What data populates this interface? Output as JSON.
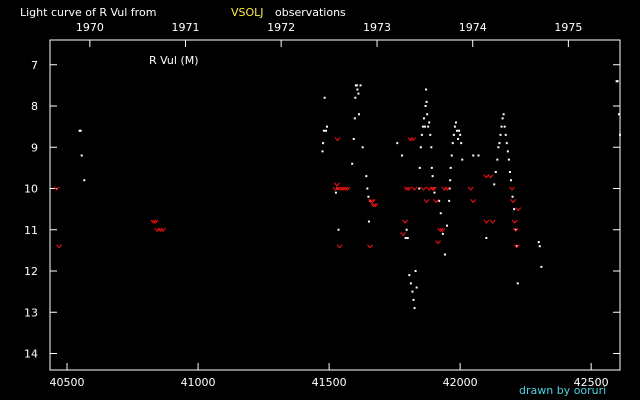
{
  "chart_data": {
    "type": "scatter",
    "title_parts": [
      "Light curve of R Vul from",
      "VSOLJ",
      "observations"
    ],
    "star_label": "R Vul (M)",
    "credit": "drawn by ooruri",
    "x_axis_bottom": {
      "label": "",
      "range": [
        40435,
        42610
      ],
      "ticks": [
        40500,
        41000,
        41500,
        42000,
        42500
      ],
      "tick_labels": [
        "40500",
        "41000",
        "41500",
        "42000",
        "42500"
      ]
    },
    "x_axis_top": {
      "label": "",
      "ticks_jd": [
        40587,
        40952,
        41317,
        41683,
        42048,
        42413
      ],
      "tick_labels": [
        "1970",
        "1971",
        "1972",
        "1973",
        "1974",
        "1975"
      ]
    },
    "y_axis": {
      "label": "",
      "range": [
        6.4,
        14.4
      ],
      "inverted": true,
      "ticks": [
        7,
        8,
        9,
        10,
        11,
        12,
        13,
        14
      ],
      "tick_labels": [
        "7",
        "8",
        "9",
        "10",
        "11",
        "12",
        "13",
        "14"
      ]
    },
    "colors": {
      "background": "#000000",
      "observation": "#ffffff",
      "fainter_than": "#dd1111",
      "highlight": "#ffee44",
      "credit": "#4fd0e0"
    },
    "series": [
      {
        "marker": "dot",
        "points": [
          [
            40548,
            8.6
          ],
          [
            40552,
            8.6
          ],
          [
            40556,
            9.2
          ],
          [
            40566,
            9.8
          ],
          [
            41475,
            9.1
          ],
          [
            41477,
            8.9
          ],
          [
            41480,
            8.6
          ],
          [
            41483,
            7.8
          ],
          [
            41488,
            8.6
          ],
          [
            41492,
            8.5
          ],
          [
            41526,
            10.1
          ],
          [
            41530,
            10.0
          ],
          [
            41536,
            11.0
          ],
          [
            41588,
            9.4
          ],
          [
            41594,
            8.8
          ],
          [
            41598,
            8.3
          ],
          [
            41600,
            7.8
          ],
          [
            41602,
            7.5
          ],
          [
            41606,
            7.5
          ],
          [
            41608,
            7.6
          ],
          [
            41612,
            7.7
          ],
          [
            41614,
            8.2
          ],
          [
            41620,
            7.5
          ],
          [
            41628,
            9.0
          ],
          [
            41642,
            9.7
          ],
          [
            41646,
            10.0
          ],
          [
            41650,
            10.2
          ],
          [
            41652,
            10.8
          ],
          [
            41656,
            10.3
          ],
          [
            41760,
            8.9
          ],
          [
            41778,
            9.2
          ],
          [
            41792,
            11.2
          ],
          [
            41796,
            11.0
          ],
          [
            41800,
            11.2
          ],
          [
            41806,
            12.1
          ],
          [
            41812,
            12.3
          ],
          [
            41818,
            12.5
          ],
          [
            41822,
            12.7
          ],
          [
            41826,
            12.9
          ],
          [
            41830,
            12.0
          ],
          [
            41834,
            12.4
          ],
          [
            41844,
            10.0
          ],
          [
            41846,
            9.5
          ],
          [
            41850,
            9.0
          ],
          [
            41854,
            8.7
          ],
          [
            41858,
            8.5
          ],
          [
            41862,
            8.3
          ],
          [
            41866,
            8.5
          ],
          [
            41868,
            8.0
          ],
          [
            41870,
            7.6
          ],
          [
            41872,
            7.9
          ],
          [
            41874,
            8.2
          ],
          [
            41878,
            8.5
          ],
          [
            41882,
            8.4
          ],
          [
            41886,
            8.7
          ],
          [
            41890,
            9.0
          ],
          [
            41892,
            9.5
          ],
          [
            41895,
            9.7
          ],
          [
            41898,
            10.0
          ],
          [
            41902,
            10.1
          ],
          [
            41920,
            10.3
          ],
          [
            41926,
            10.6
          ],
          [
            41934,
            11.1
          ],
          [
            41942,
            11.6
          ],
          [
            41950,
            10.9
          ],
          [
            41958,
            10.3
          ],
          [
            41960,
            10.0
          ],
          [
            41962,
            9.8
          ],
          [
            41964,
            9.5
          ],
          [
            41968,
            9.2
          ],
          [
            41972,
            8.9
          ],
          [
            41976,
            8.7
          ],
          [
            41980,
            8.5
          ],
          [
            41984,
            8.4
          ],
          [
            41988,
            8.6
          ],
          [
            41992,
            8.8
          ],
          [
            41996,
            8.6
          ],
          [
            42000,
            8.7
          ],
          [
            42004,
            8.9
          ],
          [
            42008,
            9.3
          ],
          [
            42050,
            9.2
          ],
          [
            42070,
            9.2
          ],
          [
            42100,
            11.2
          ],
          [
            42130,
            9.9
          ],
          [
            42136,
            9.6
          ],
          [
            42142,
            9.3
          ],
          [
            42146,
            9.0
          ],
          [
            42150,
            8.9
          ],
          [
            42154,
            8.7
          ],
          [
            42158,
            8.5
          ],
          [
            42162,
            8.3
          ],
          [
            42166,
            8.2
          ],
          [
            42170,
            8.5
          ],
          [
            42174,
            8.7
          ],
          [
            42178,
            8.9
          ],
          [
            42182,
            9.1
          ],
          [
            42186,
            9.3
          ],
          [
            42190,
            9.6
          ],
          [
            42194,
            9.8
          ],
          [
            42200,
            10.2
          ],
          [
            42206,
            10.5
          ],
          [
            42212,
            11.0
          ],
          [
            42216,
            11.4
          ],
          [
            42220,
            12.3
          ],
          [
            42300,
            11.3
          ],
          [
            42304,
            11.4
          ],
          [
            42310,
            11.9
          ],
          [
            42597,
            7.4
          ],
          [
            42601,
            7.4
          ],
          [
            42606,
            8.2
          ],
          [
            42610,
            8.7
          ]
        ]
      },
      {
        "marker": "fainter-than",
        "points": [
          [
            40460,
            10.0
          ],
          [
            40470,
            11.4
          ],
          [
            40830,
            10.8
          ],
          [
            40838,
            10.8
          ],
          [
            40844,
            11.0
          ],
          [
            40856,
            11.0
          ],
          [
            40866,
            11.0
          ],
          [
            41524,
            10.0
          ],
          [
            41530,
            9.9
          ],
          [
            41538,
            10.0
          ],
          [
            41546,
            10.0
          ],
          [
            41554,
            10.0
          ],
          [
            41562,
            10.0
          ],
          [
            41570,
            10.0
          ],
          [
            41532,
            8.8
          ],
          [
            41540,
            11.4
          ],
          [
            41660,
            10.3
          ],
          [
            41666,
            10.3
          ],
          [
            41670,
            10.4
          ],
          [
            41676,
            10.4
          ],
          [
            41656,
            11.4
          ],
          [
            41782,
            11.1
          ],
          [
            41790,
            10.8
          ],
          [
            41796,
            10.0
          ],
          [
            41804,
            10.0
          ],
          [
            41810,
            8.8
          ],
          [
            41820,
            8.8
          ],
          [
            41826,
            10.0
          ],
          [
            41860,
            10.0
          ],
          [
            41872,
            10.3
          ],
          [
            41882,
            10.0
          ],
          [
            41894,
            10.0
          ],
          [
            41900,
            10.0
          ],
          [
            41908,
            10.3
          ],
          [
            41916,
            11.3
          ],
          [
            41924,
            11.0
          ],
          [
            41932,
            11.0
          ],
          [
            41940,
            10.0
          ],
          [
            41950,
            10.0
          ],
          [
            42040,
            10.0
          ],
          [
            42050,
            10.3
          ],
          [
            42100,
            9.7
          ],
          [
            42116,
            9.7
          ],
          [
            42100,
            10.8
          ],
          [
            42124,
            10.8
          ],
          [
            42198,
            10.0
          ],
          [
            42202,
            10.3
          ],
          [
            42208,
            10.8
          ],
          [
            42212,
            11.0
          ],
          [
            42216,
            11.4
          ],
          [
            42222,
            10.5
          ]
        ]
      }
    ]
  }
}
